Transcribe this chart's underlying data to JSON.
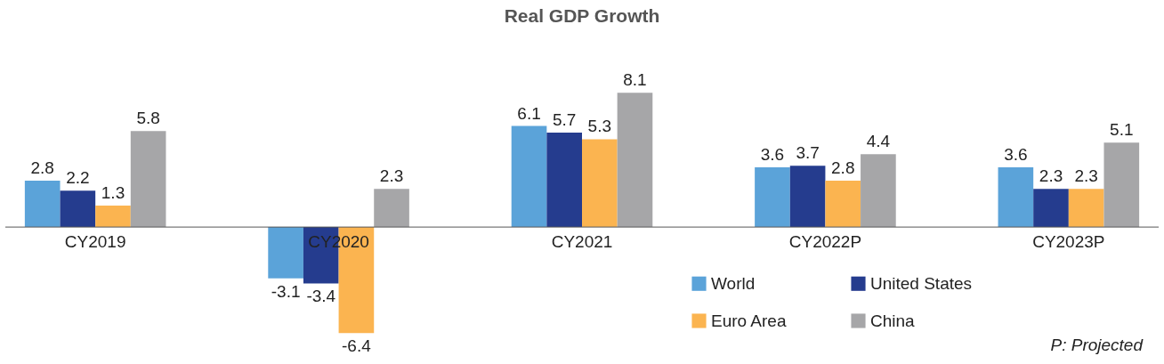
{
  "chart_data": {
    "type": "bar",
    "title": "Real GDP Growth",
    "categories": [
      "CY2019",
      "CY2020",
      "CY2021",
      "CY2022P",
      "CY2023P"
    ],
    "series": [
      {
        "name": "World",
        "color": "#5ba3d9",
        "values": [
          2.8,
          -3.1,
          6.1,
          3.6,
          3.6
        ]
      },
      {
        "name": "United States",
        "color": "#253c8e",
        "values": [
          2.2,
          -3.4,
          5.7,
          3.7,
          2.3
        ]
      },
      {
        "name": "Euro Area",
        "color": "#fbb450",
        "values": [
          1.3,
          -6.4,
          5.3,
          2.8,
          2.3
        ]
      },
      {
        "name": "China",
        "color": "#a6a6a8",
        "values": [
          5.8,
          2.3,
          8.1,
          4.4,
          5.1
        ]
      }
    ],
    "data_labels": true,
    "legend": "bottom right",
    "grid": false,
    "annotations": [
      "P: Projected"
    ]
  }
}
